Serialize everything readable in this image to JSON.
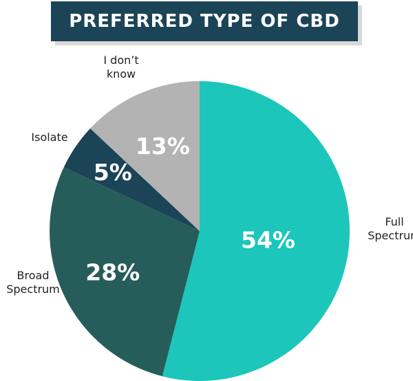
{
  "chart_data": {
    "type": "pie",
    "title": "PREFERRED TYPE OF CBD",
    "slices": [
      {
        "label": "Full Spectrum",
        "label_lines": [
          "Full",
          "Spectrum"
        ],
        "value": 54,
        "display": "54%",
        "color": "#1cc6bb"
      },
      {
        "label": "Broad Spectrum",
        "label_lines": [
          "Broad",
          "Spectrum"
        ],
        "value": 28,
        "display": "28%",
        "color": "#265d5b"
      },
      {
        "label": "Isolate",
        "label_lines": [
          "Isolate"
        ],
        "value": 5,
        "display": "5%",
        "color": "#1c4457"
      },
      {
        "label": "I don't know",
        "label_lines": [
          "I don’t",
          "know"
        ],
        "value": 13,
        "display": "13%",
        "color": "#b3b3b3"
      }
    ],
    "legend": "none"
  }
}
